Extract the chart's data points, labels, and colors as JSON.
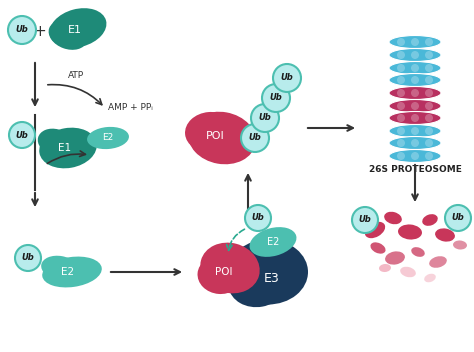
{
  "background_color": "#ffffff",
  "colors": {
    "teal_dark": "#1e8a78",
    "teal_medium": "#29a98f",
    "teal_light": "#4cbfb0",
    "cyan_circle_bg": "#b8ecec",
    "cyan_circle_border": "#4cbfb0",
    "navy": "#1a3a5c",
    "pink_dark": "#c8365a",
    "pink_light": "#f0a8b8",
    "blue_proteasome": "#4ab8d8",
    "red_proteasome": "#b83060",
    "arrow_color": "#333333"
  },
  "labels": {
    "Ub": "Ub",
    "E1": "E1",
    "E2": "E2",
    "E3": "E3",
    "POI": "POI",
    "ATP": "ATP",
    "AMP_PPi": "AMP + PPᵢ",
    "proteasome": "26S PROTEOSOME"
  }
}
